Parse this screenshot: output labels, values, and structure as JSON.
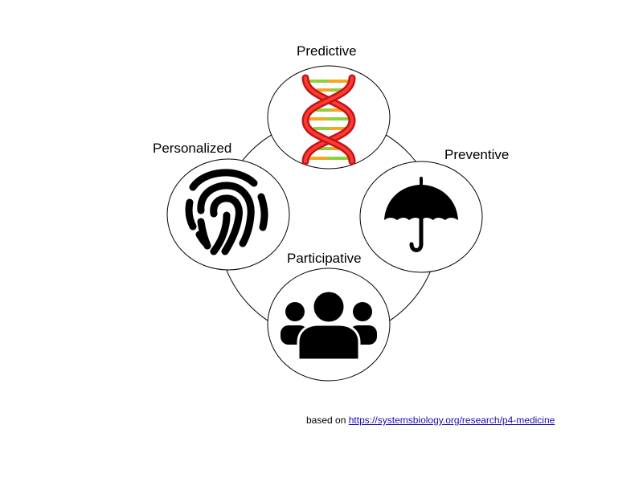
{
  "diagram": {
    "nodes": [
      {
        "id": "predictive",
        "label": "Predictive",
        "icon": "dna-icon"
      },
      {
        "id": "preventive",
        "label": "Preventive",
        "icon": "umbrella-icon"
      },
      {
        "id": "participative",
        "label": "Participative",
        "icon": "people-group-icon"
      },
      {
        "id": "personalized",
        "label": "Personalized",
        "icon": "fingerprint-icon"
      }
    ],
    "colors": {
      "stroke": "#000000",
      "fill": "#ffffff",
      "icon": "#000000",
      "dna_strand": "#e31a1c",
      "dna_rung_green": "#8fd13a",
      "dna_rung_orange": "#f5a623"
    }
  },
  "source": {
    "prefix": "based on",
    "link_text": "https://systemsbiology.org/research/p4-medicine"
  }
}
